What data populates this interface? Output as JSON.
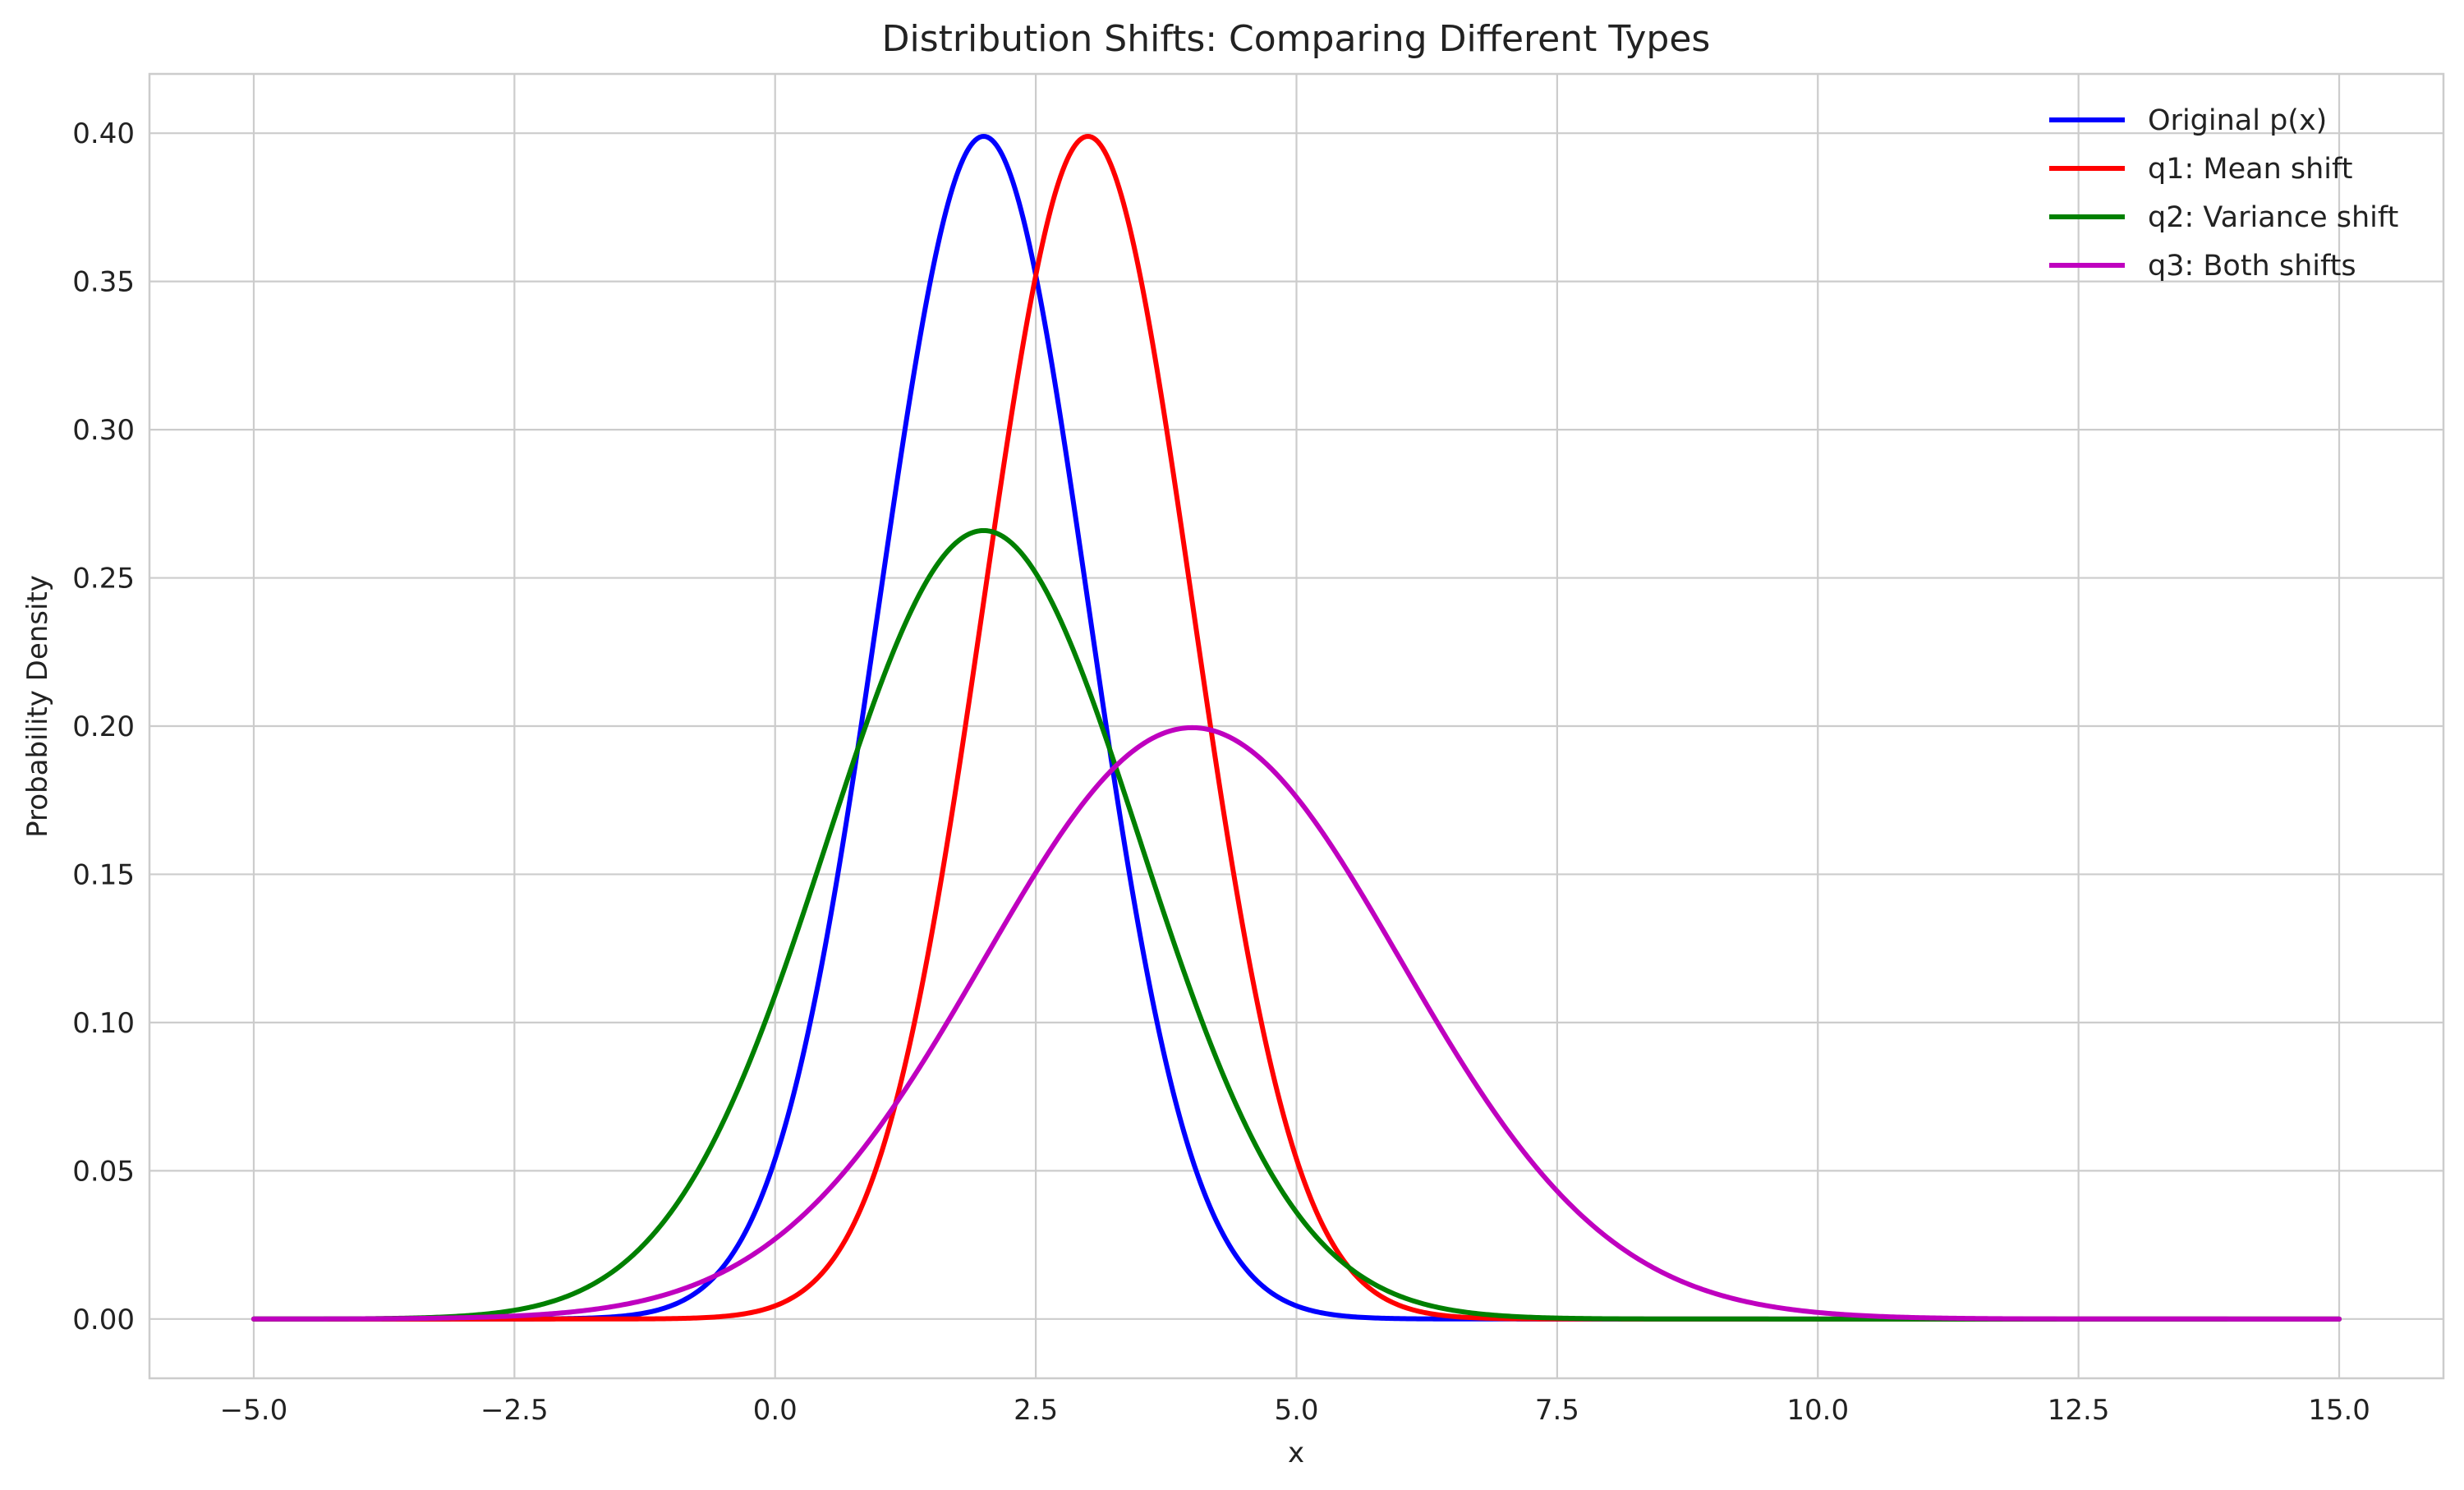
{
  "chart_data": {
    "type": "line",
    "title": "Distribution Shifts: Comparing Different Types",
    "xlabel": "x",
    "ylabel": "Probability Density",
    "xlim": [
      -6.0,
      16.0
    ],
    "ylim": [
      -0.02,
      0.42
    ],
    "x_domain": [
      -5.0,
      15.0
    ],
    "xticks": [
      -5.0,
      -2.5,
      0.0,
      2.5,
      5.0,
      7.5,
      10.0,
      12.5,
      15.0
    ],
    "xtick_labels": [
      "−5.0",
      "−2.5",
      "0.0",
      "2.5",
      "5.0",
      "7.5",
      "10.0",
      "12.5",
      "15.0"
    ],
    "yticks": [
      0.0,
      0.05,
      0.1,
      0.15,
      0.2,
      0.25,
      0.3,
      0.35,
      0.4
    ],
    "ytick_labels": [
      "0.00",
      "0.05",
      "0.10",
      "0.15",
      "0.20",
      "0.25",
      "0.30",
      "0.35",
      "0.40"
    ],
    "grid": true,
    "legend_position": "top-right",
    "series": [
      {
        "name": "Original p(x)",
        "color": "#0000ff",
        "distribution": "normal",
        "mean": 2.0,
        "std": 1.0
      },
      {
        "name": "q1: Mean shift",
        "color": "#ff0000",
        "distribution": "normal",
        "mean": 3.0,
        "std": 1.0
      },
      {
        "name": "q2: Variance shift",
        "color": "#008000",
        "distribution": "normal",
        "mean": 2.0,
        "std": 1.5
      },
      {
        "name": "q3: Both shifts",
        "color": "#bf00bf",
        "distribution": "normal",
        "mean": 4.0,
        "std": 2.0
      }
    ]
  }
}
